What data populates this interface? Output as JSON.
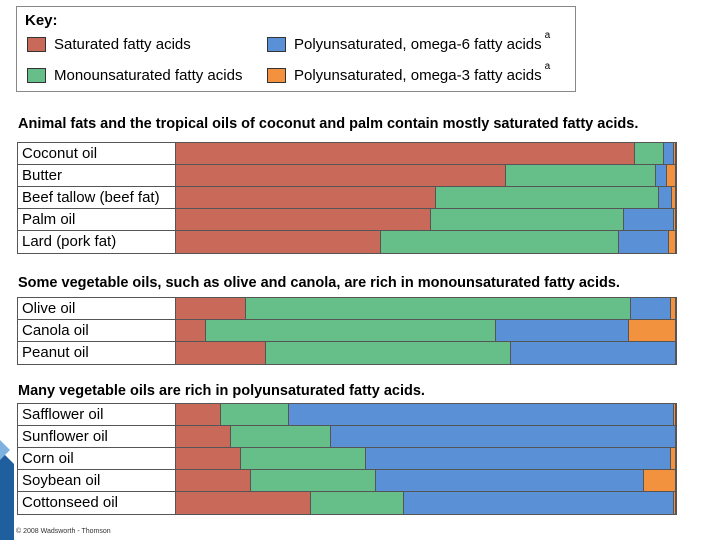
{
  "colors": {
    "saturated": "#c8695a",
    "monounsaturated": "#66bf88",
    "omega6": "#5a90d6",
    "omega3": "#f2913e",
    "border": "#555555"
  },
  "key": {
    "title": "Key:",
    "items": [
      {
        "label": "Saturated fatty acids",
        "color": "#c8695a",
        "sup": ""
      },
      {
        "label": "Monounsaturated fatty acids",
        "color": "#66bf88",
        "sup": ""
      },
      {
        "label": "Polyunsaturated, omega-6 fatty acids",
        "color": "#5a90d6",
        "sup": "a"
      },
      {
        "label": "Polyunsaturated, omega-3 fatty acids",
        "color": "#f2913e",
        "sup": "a"
      }
    ]
  },
  "chart_data": {
    "type": "bar",
    "orientation": "horizontal-stacked-100",
    "units": "percent of total fat",
    "series": [
      {
        "name": "Saturated fatty acids",
        "color": "#c8695a"
      },
      {
        "name": "Monounsaturated fatty acids",
        "color": "#66bf88"
      },
      {
        "name": "Polyunsaturated, omega-6 fatty acids",
        "color": "#5a90d6"
      },
      {
        "name": "Polyunsaturated, omega-3 fatty acids",
        "color": "#f2913e"
      }
    ],
    "groups": [
      {
        "heading": "Animal fats and the tropical oils of coconut and palm contain mostly saturated fatty acids.",
        "rows": [
          {
            "label": "Coconut oil",
            "values": [
              91.7,
              5.8,
              2.0,
              0.5
            ]
          },
          {
            "label": "Butter",
            "values": [
              66.0,
              30.0,
              2.2,
              1.8
            ]
          },
          {
            "label": "Beef tallow (beef fat)",
            "values": [
              52.0,
              44.5,
              2.6,
              0.9
            ]
          },
          {
            "label": "Palm oil",
            "values": [
              51.0,
              38.5,
              10.0,
              0.5
            ]
          },
          {
            "label": "Lard (pork fat)",
            "values": [
              41.0,
              47.5,
              10.0,
              1.5
            ]
          }
        ]
      },
      {
        "heading": "Some vegetable oils, such as olive and canola, are rich in monounsaturated fatty acids.",
        "rows": [
          {
            "label": "Olive oil",
            "values": [
              14.0,
              77.0,
              8.0,
              1.0
            ]
          },
          {
            "label": "Canola oil",
            "values": [
              6.0,
              58.0,
              26.5,
              9.5
            ]
          },
          {
            "label": "Peanut oil",
            "values": [
              18.0,
              49.0,
              33.0,
              0.0
            ]
          }
        ]
      },
      {
        "heading": "Many vegetable oils are rich in polyunsaturated fatty acids.",
        "rows": [
          {
            "label": "Safflower oil",
            "values": [
              9.0,
              13.5,
              77.0,
              0.5
            ]
          },
          {
            "label": "Sunflower oil",
            "values": [
              11.0,
              20.0,
              69.0,
              0.0
            ]
          },
          {
            "label": "Corn oil",
            "values": [
              13.0,
              25.0,
              61.0,
              1.0
            ]
          },
          {
            "label": "Soybean oil",
            "values": [
              15.0,
              25.0,
              53.5,
              6.5
            ]
          },
          {
            "label": "Cottonseed oil",
            "values": [
              27.0,
              18.5,
              54.0,
              0.5
            ]
          }
        ]
      }
    ]
  },
  "footer": {
    "copyright": "© 2008 Wadsworth - Thomson"
  }
}
